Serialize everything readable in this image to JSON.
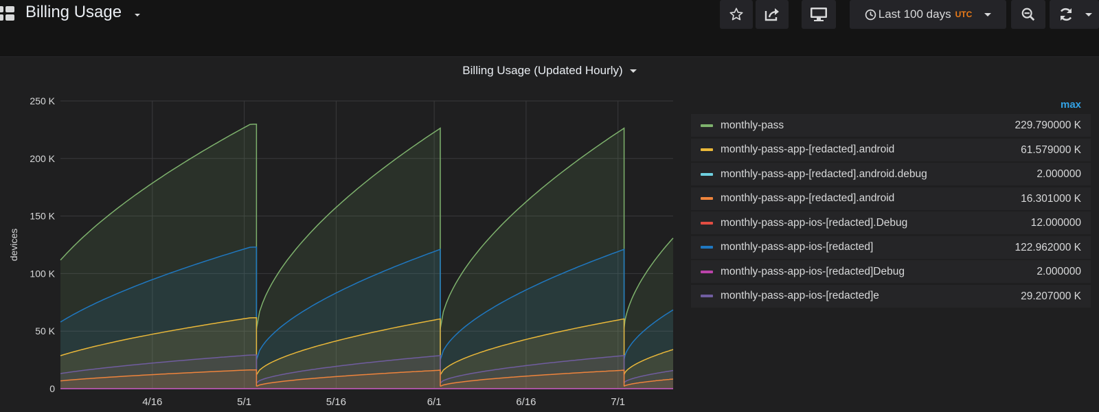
{
  "header": {
    "title": "Billing Usage",
    "time_range": "Last 100 days",
    "timezone": "UTC"
  },
  "panel": {
    "title": "Billing Usage (Updated Hourly)",
    "legend_header": "max"
  },
  "legend": [
    {
      "name": "monthly-pass",
      "value": "229.790000 K",
      "color": "#7eb26d"
    },
    {
      "name": "monthly-pass-app-[redacted].android",
      "value": "61.579000 K",
      "color": "#eab839"
    },
    {
      "name": "monthly-pass-app-[redacted].android.debug",
      "value": "2.000000",
      "color": "#6ed0e0"
    },
    {
      "name": "monthly-pass-app-[redacted].android",
      "value": "16.301000 K",
      "color": "#ef843c"
    },
    {
      "name": "monthly-pass-app-ios-[redacted].Debug",
      "value": "12.000000",
      "color": "#e24d42"
    },
    {
      "name": "monthly-pass-app-ios-[redacted]",
      "value": "122.962000 K",
      "color": "#1f78c1"
    },
    {
      "name": "monthly-pass-app-ios-[redacted]Debug",
      "value": "2.000000",
      "color": "#ba43a9"
    },
    {
      "name": "monthly-pass-app-ios-[redacted]e",
      "value": "29.207000 K",
      "color": "#705da0"
    }
  ],
  "chart_data": {
    "type": "area",
    "ylabel": "devices",
    "ylim": [
      0,
      250000
    ],
    "yticks": [
      "0",
      "50 K",
      "100 K",
      "150 K",
      "200 K",
      "250 K"
    ],
    "xticks": [
      "4/16",
      "5/1",
      "5/16",
      "6/1",
      "6/16",
      "7/1"
    ],
    "x_domain": [
      "2018-04-01",
      "2018-07-10"
    ],
    "grid": true,
    "reset_dates": [
      "2018-05-03",
      "2018-06-02",
      "2018-07-02"
    ],
    "series": [
      {
        "name": "monthly-pass",
        "color": "#7eb26d",
        "max": 229790,
        "start": 52000
      },
      {
        "name": "monthly-pass-app-ios-[redacted]",
        "color": "#1f78c1",
        "max": 122962,
        "start": 25000
      },
      {
        "name": "monthly-pass-app-[redacted].android",
        "color": "#eab839",
        "max": 61579,
        "start": 12000
      },
      {
        "name": "monthly-pass-app-ios-[redacted]e",
        "color": "#705da0",
        "max": 29207,
        "start": 5000
      },
      {
        "name": "monthly-pass-app-[redacted].android",
        "color": "#ef843c",
        "max": 16301,
        "start": 2000
      },
      {
        "name": "monthly-pass-app-ios-[redacted].Debug",
        "color": "#e24d42",
        "max": 12,
        "start": 0
      },
      {
        "name": "monthly-pass-app-[redacted].android.debug",
        "color": "#6ed0e0",
        "max": 2,
        "start": 0
      },
      {
        "name": "monthly-pass-app-ios-[redacted]Debug",
        "color": "#ba43a9",
        "max": 2,
        "start": 0
      }
    ]
  }
}
